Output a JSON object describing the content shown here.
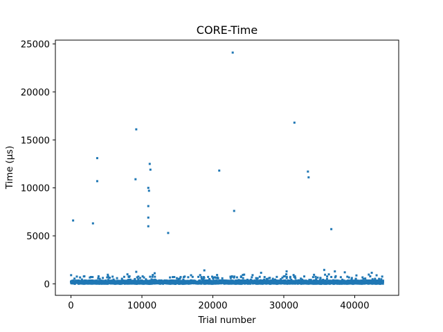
{
  "chart_data": {
    "type": "scatter",
    "title": "CORE-Time",
    "xlabel": "Trial number",
    "ylabel": "Time (µs)",
    "xlim": [
      -2200,
      46200
    ],
    "ylim": [
      -1200,
      25400
    ],
    "xticks": [
      0,
      10000,
      20000,
      30000,
      40000
    ],
    "yticks": [
      0,
      5000,
      10000,
      15000,
      20000,
      25000
    ],
    "grid": false,
    "marker_color": "#1f77b4",
    "series": [
      {
        "outliers": [
          {
            "x": 300,
            "y": 6600
          },
          {
            "x": 3100,
            "y": 6300
          },
          {
            "x": 3700,
            "y": 13100
          },
          {
            "x": 3700,
            "y": 10700
          },
          {
            "x": 9200,
            "y": 16100
          },
          {
            "x": 9100,
            "y": 10900
          },
          {
            "x": 11100,
            "y": 12500
          },
          {
            "x": 11200,
            "y": 11900
          },
          {
            "x": 10900,
            "y": 10000
          },
          {
            "x": 11000,
            "y": 9700
          },
          {
            "x": 10900,
            "y": 8100
          },
          {
            "x": 10900,
            "y": 6900
          },
          {
            "x": 10900,
            "y": 6000
          },
          {
            "x": 13700,
            "y": 5300
          },
          {
            "x": 20900,
            "y": 11800
          },
          {
            "x": 22800,
            "y": 24100
          },
          {
            "x": 23000,
            "y": 7600
          },
          {
            "x": 31500,
            "y": 16800
          },
          {
            "x": 33400,
            "y": 11700
          },
          {
            "x": 33500,
            "y": 11100
          },
          {
            "x": 36700,
            "y": 5700
          }
        ],
        "noise_band": {
          "x_range": [
            0,
            44000
          ],
          "base_max": 350,
          "spike_max": 1450,
          "spikes": [
            {
              "x": 9200,
              "y": 1250
            },
            {
              "x": 11800,
              "y": 1100
            },
            {
              "x": 18800,
              "y": 1400
            },
            {
              "x": 26800,
              "y": 1150
            },
            {
              "x": 30400,
              "y": 1300
            },
            {
              "x": 35700,
              "y": 1450
            },
            {
              "x": 37200,
              "y": 1300
            },
            {
              "x": 38600,
              "y": 1200
            },
            {
              "x": 42400,
              "y": 1150
            }
          ]
        }
      }
    ]
  }
}
